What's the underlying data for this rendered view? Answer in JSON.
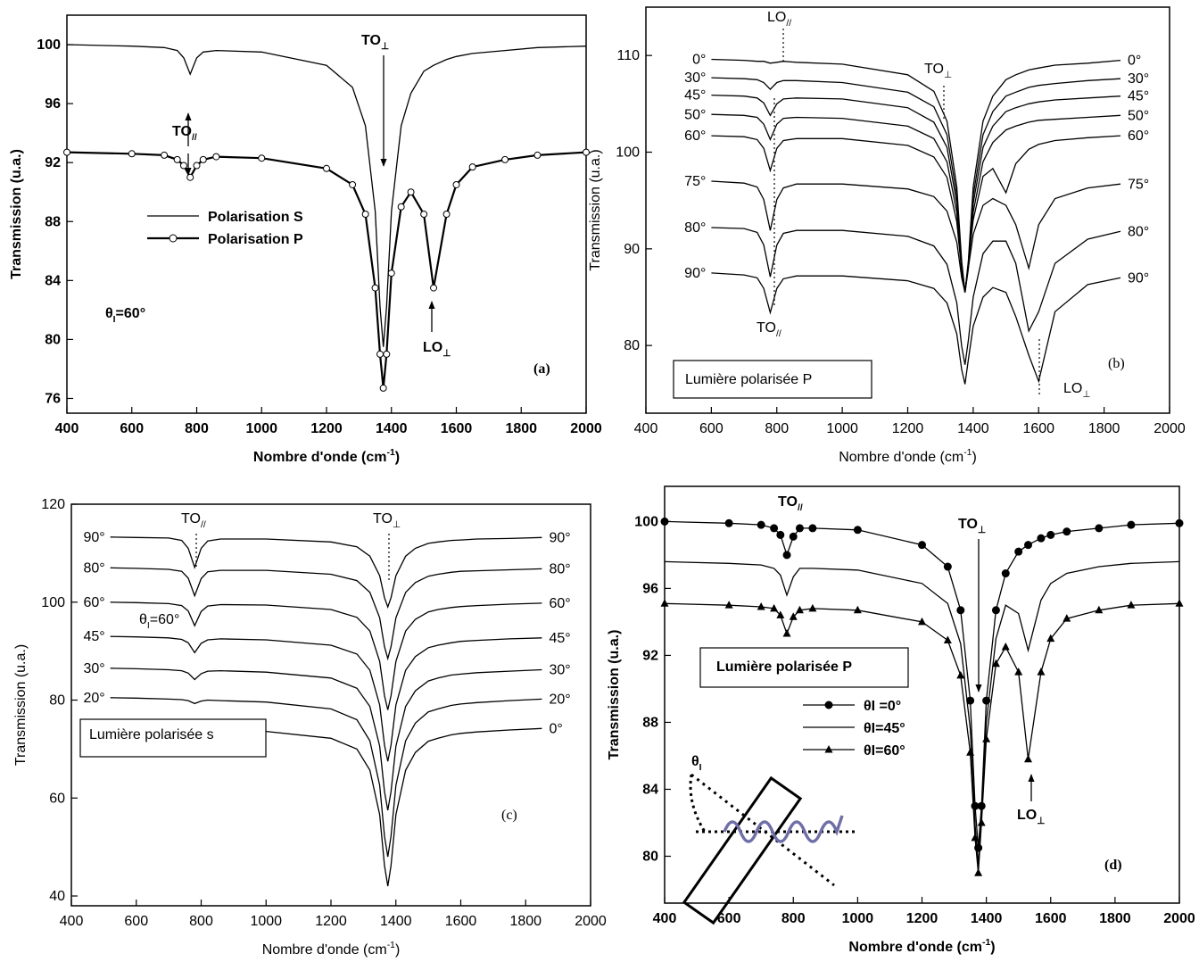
{
  "chart_data": [
    {
      "type": "line",
      "panel_label": "(a)",
      "x_label": {
        "text": "Nombre d'onde (cm",
        "sup": "-1",
        "tail": ")"
      },
      "y_label": "Transmission (u.a.)",
      "x": [
        400,
        600,
        700,
        740,
        760,
        780,
        800,
        820,
        860,
        1000,
        1200,
        1280,
        1320,
        1350,
        1365,
        1375,
        1385,
        1400,
        1430,
        1460,
        1500,
        1530,
        1570,
        1600,
        1650,
        1750,
        1850,
        2000
      ],
      "series": [
        {
          "name": "Polarisation S",
          "color": "#000000",
          "values": [
            100,
            99.9,
            99.8,
            99.6,
            99.1,
            98,
            99.1,
            99.5,
            99.6,
            99.5,
            98.6,
            97.1,
            94.5,
            88.7,
            82.2,
            79.5,
            82.2,
            88.7,
            94.5,
            96.7,
            98.2,
            98.6,
            99,
            99.2,
            99.4,
            99.6,
            99.8,
            99.9
          ]
        },
        {
          "name": "Polarisation P",
          "color": "#000000",
          "marker": "circle",
          "values": [
            92.7,
            92.6,
            92.5,
            92.2,
            91.8,
            91,
            91.8,
            92.2,
            92.4,
            92.3,
            91.6,
            90.5,
            88.5,
            83.5,
            79,
            76.7,
            79,
            84.5,
            89,
            90,
            88.5,
            83.5,
            88.5,
            90.5,
            91.7,
            92.2,
            92.5,
            92.7
          ]
        }
      ],
      "xlim": [
        400,
        2000
      ],
      "ylim": [
        75,
        102
      ],
      "xticks": [
        400,
        600,
        800,
        1000,
        1200,
        1400,
        1600,
        1800,
        2000
      ],
      "yticks": [
        76,
        80,
        84,
        88,
        92,
        96,
        100
      ],
      "annotations": [
        {
          "text": "TO",
          "sub": "⊥"
        },
        {
          "text": "TO",
          "sub": "//"
        },
        {
          "text": "LO",
          "sub": "⊥"
        },
        {
          "text": "θ",
          "sub": "I",
          "tail": "=60°"
        }
      ]
    },
    {
      "type": "line",
      "panel_label": "(b)",
      "x_label": {
        "text": "Nombre d'onde (cm",
        "sup": "-1",
        "tail": ")"
      },
      "y_label": "Transmission (u.a.)",
      "x": [
        600,
        700,
        740,
        760,
        780,
        800,
        820,
        860,
        1000,
        1200,
        1280,
        1320,
        1350,
        1365,
        1375,
        1385,
        1400,
        1430,
        1460,
        1500,
        1530,
        1570,
        1600,
        1650,
        1750,
        1850
      ],
      "series": [
        {
          "name": "0°",
          "color": "#000000",
          "values": [
            109.6,
            109.5,
            109.4,
            109.4,
            109.2,
            109.3,
            109.4,
            109.3,
            109.1,
            108,
            106.3,
            103.2,
            96.4,
            88.7,
            85.5,
            88.7,
            96.4,
            103.2,
            105.8,
            107.5,
            108,
            108.5,
            108.7,
            109,
            109.2,
            109.5
          ]
        },
        {
          "name": "30°",
          "color": "#000000",
          "values": [
            107.7,
            107.6,
            107.5,
            107.2,
            106.5,
            107.2,
            107.4,
            107.4,
            107.2,
            106.2,
            104.7,
            101.8,
            95.5,
            88.4,
            85.5,
            88.4,
            95.5,
            101.8,
            104.2,
            105.8,
            106.2,
            106.7,
            106.9,
            107.1,
            107.4,
            107.6
          ]
        },
        {
          "name": "45°",
          "color": "#000000",
          "values": [
            105.9,
            105.8,
            105.6,
            105.1,
            103.8,
            105,
            105.5,
            105.6,
            105.5,
            104.6,
            103.1,
            100.5,
            94.7,
            88.2,
            85.5,
            88.2,
            94.7,
            100.5,
            102.7,
            104.2,
            104.6,
            105,
            105.2,
            105.4,
            105.6,
            105.8
          ]
        },
        {
          "name": "50°",
          "color": "#000000",
          "values": [
            103.9,
            103.8,
            103.6,
            102.9,
            101.3,
            102.9,
            103.5,
            103.6,
            103.5,
            102.7,
            101.4,
            99,
            93.8,
            87.9,
            85.5,
            87.9,
            93.8,
            99,
            101,
            102.3,
            102.7,
            103.1,
            103.3,
            103.4,
            103.6,
            103.8
          ]
        },
        {
          "name": "60°",
          "color": "#000000",
          "values": [
            101.7,
            101.6,
            101.3,
            100.4,
            98.1,
            100.4,
            101.2,
            101.4,
            101.4,
            100.7,
            99.5,
            97.4,
            92.8,
            87.6,
            85.5,
            88.5,
            93,
            97.5,
            98.3,
            95.8,
            98.8,
            100.3,
            100.8,
            101.2,
            101.5,
            101.7
          ]
        },
        {
          "name": "75°",
          "color": "#000000",
          "values": [
            97,
            96.8,
            96.4,
            95.1,
            91.9,
            95.1,
            96.3,
            96.7,
            96.7,
            96.2,
            95.4,
            93.9,
            90.7,
            87,
            85.5,
            88,
            91.5,
            94.5,
            95.2,
            94.5,
            92.5,
            88,
            92.5,
            95.2,
            96.3,
            96.7
          ]
        },
        {
          "name": "80°",
          "color": "#000000",
          "values": [
            92.2,
            92.1,
            91.7,
            90.4,
            87.1,
            90.4,
            91.6,
            91.9,
            91.9,
            91.3,
            90.3,
            88.4,
            84.4,
            79.9,
            78,
            80.5,
            85,
            89.5,
            90.8,
            90.8,
            88.5,
            81.5,
            83.5,
            88.5,
            91,
            91.8
          ]
        },
        {
          "name": "90°",
          "color": "#000000",
          "values": [
            87.5,
            87.3,
            87,
            85.9,
            83.4,
            85.9,
            86.9,
            87.2,
            87.2,
            86.7,
            85.9,
            84.4,
            81.2,
            77.5,
            76,
            78.5,
            82,
            85,
            86,
            85.5,
            83,
            79,
            76.3,
            83.5,
            86.3,
            87
          ]
        }
      ],
      "xlim": [
        400,
        2000
      ],
      "ylim": [
        73,
        115
      ],
      "xticks": [
        400,
        600,
        800,
        1000,
        1200,
        1400,
        1600,
        1800,
        2000
      ],
      "yticks": [
        80,
        90,
        100,
        110
      ],
      "annotations": [
        {
          "text": "LO",
          "sub": "//"
        },
        {
          "text": "TO",
          "sub": "⊥"
        },
        {
          "text": "TO",
          "sub": "//"
        },
        {
          "text": "LO",
          "sub": "⊥"
        },
        {
          "text": "Lumière polarisée P"
        }
      ]
    },
    {
      "type": "line",
      "panel_label": "(c)",
      "x_label": {
        "text": "Nombre d'onde (cm",
        "sup": "-1",
        "tail": ")"
      },
      "y_label": "Transmission (u.a.)",
      "x": [
        520,
        600,
        700,
        740,
        760,
        780,
        800,
        820,
        860,
        1000,
        1200,
        1280,
        1320,
        1350,
        1365,
        1375,
        1385,
        1400,
        1430,
        1460,
        1500,
        1530,
        1570,
        1600,
        1650,
        1750,
        1850
      ],
      "series": [
        {
          "name": "90°",
          "color": "#000000",
          "values": [
            113.3,
            113.2,
            113.1,
            112.6,
            111,
            107.1,
            111,
            112.5,
            112.9,
            112.9,
            112.3,
            111.3,
            109.4,
            105.4,
            100.9,
            99,
            100.9,
            105.4,
            109.4,
            111,
            112,
            112.3,
            112.6,
            112.7,
            112.9,
            113,
            113.2
          ]
        },
        {
          "name": "80°",
          "color": "#000000",
          "values": [
            107,
            106.9,
            106.7,
            106.3,
            104.9,
            101.3,
            104.8,
            106.2,
            106.5,
            106.5,
            105.7,
            104.4,
            102,
            96.8,
            90.9,
            88.5,
            90.9,
            96.8,
            102,
            104,
            105.3,
            105.7,
            106.1,
            106.3,
            106.4,
            106.6,
            106.8
          ]
        },
        {
          "name": "60°",
          "color": "#000000",
          "values": [
            100,
            99.9,
            99.7,
            99.3,
            98.2,
            95.2,
            98.1,
            99.2,
            99.5,
            99.4,
            98.5,
            96.9,
            94.1,
            87.9,
            80.9,
            78,
            80.9,
            87.9,
            94.1,
            96.5,
            98,
            98.5,
            98.9,
            99.1,
            99.3,
            99.6,
            99.8
          ]
        },
        {
          "name": "45°",
          "color": "#000000",
          "values": [
            93,
            92.9,
            92.7,
            92.4,
            91.7,
            89.7,
            91.6,
            92.3,
            92.5,
            92.3,
            91.2,
            89.4,
            86.1,
            79,
            70.8,
            67.5,
            70.8,
            79,
            86.1,
            88.9,
            90.7,
            91.2,
            91.7,
            92,
            92.2,
            92.5,
            92.7
          ]
        },
        {
          "name": "30°",
          "color": "#000000",
          "values": [
            86.5,
            86.4,
            86.2,
            86,
            85.5,
            84.2,
            85.4,
            85.9,
            86,
            85.7,
            84.5,
            82.4,
            78.7,
            70.6,
            61.3,
            57.5,
            61.3,
            70.6,
            78.7,
            81.9,
            83.9,
            84.5,
            85.1,
            85.3,
            85.6,
            85.9,
            86.2
          ]
        },
        {
          "name": "20°",
          "color": "#000000",
          "values": [
            80.5,
            80.4,
            80.2,
            80.1,
            79.9,
            79.3,
            79.8,
            80,
            79.9,
            79.6,
            78.2,
            76,
            71.7,
            62.6,
            52.2,
            48,
            52.2,
            62.6,
            71.7,
            75.3,
            77.6,
            78.2,
            78.9,
            79.2,
            79.5,
            79.9,
            80.2
          ]
        },
        {
          "name": "0°",
          "color": "#000000",
          "values": [
            74.5,
            74.4,
            74.2,
            74.2,
            74.1,
            74.1,
            74.1,
            74,
            74,
            73.6,
            72.2,
            70,
            65.7,
            56.6,
            46.2,
            42,
            46.2,
            56.6,
            65.7,
            69.3,
            71.6,
            72.2,
            72.9,
            73.2,
            73.5,
            73.9,
            74.2
          ]
        }
      ],
      "xlim": [
        400,
        2000
      ],
      "ylim": [
        38,
        120
      ],
      "xticks": [
        400,
        600,
        800,
        1000,
        1200,
        1400,
        1600,
        1800,
        2000
      ],
      "yticks": [
        40,
        60,
        80,
        100,
        120
      ],
      "annotations": [
        {
          "text": "TO",
          "sub": "//"
        },
        {
          "text": "TO",
          "sub": "⊥"
        },
        {
          "text": "θ",
          "sub": "I",
          "tail": "=60°"
        },
        {
          "text": "Lumière polarisée s"
        }
      ]
    },
    {
      "type": "line",
      "panel_label": "(d)",
      "x_label": {
        "text": "Nombre d'onde (cm",
        "sup": "-1",
        "tail": ")"
      },
      "y_label": "Transmission (u.a.)",
      "x": [
        400,
        600,
        700,
        740,
        760,
        780,
        800,
        820,
        860,
        1000,
        1200,
        1280,
        1320,
        1350,
        1365,
        1375,
        1385,
        1400,
        1430,
        1460,
        1500,
        1530,
        1570,
        1600,
        1650,
        1750,
        1850,
        2000
      ],
      "series": [
        {
          "name": "θI =0°",
          "color": "#000000",
          "marker": "circle",
          "values": [
            100,
            99.9,
            99.8,
            99.6,
            99.2,
            98,
            99.1,
            99.6,
            99.6,
            99.5,
            98.6,
            97.3,
            94.7,
            89.3,
            83,
            80.5,
            83,
            89.3,
            94.7,
            96.9,
            98.2,
            98.6,
            99,
            99.2,
            99.4,
            99.6,
            99.8,
            99.9
          ]
        },
        {
          "name": "θI=45°",
          "color": "#000000",
          "values": [
            97.6,
            97.5,
            97.4,
            97.2,
            96.8,
            95.6,
            96.7,
            97.2,
            97.2,
            97.1,
            96.3,
            95.1,
            92.7,
            87.6,
            81.9,
            79.5,
            82.5,
            88,
            93,
            95,
            94.5,
            92.3,
            95.3,
            96.3,
            96.9,
            97.3,
            97.5,
            97.6
          ]
        },
        {
          "name": "θI=60°",
          "color": "#000000",
          "marker": "triangle",
          "values": [
            95.1,
            95,
            94.9,
            94.8,
            94.4,
            93.3,
            94.3,
            94.7,
            94.8,
            94.7,
            94,
            92.9,
            90.8,
            86.2,
            81.1,
            79,
            82,
            87,
            91.5,
            92.5,
            91,
            85.8,
            91,
            93,
            94.2,
            94.7,
            95,
            95.1
          ]
        }
      ],
      "xlim": [
        400,
        2000
      ],
      "ylim": [
        77.2,
        102.1
      ],
      "xticks": [
        400,
        600,
        800,
        1000,
        1200,
        1400,
        1600,
        1800,
        2000
      ],
      "yticks": [
        80,
        84,
        88,
        92,
        96,
        100
      ],
      "annotations": [
        {
          "text": "TO",
          "sub": "//"
        },
        {
          "text": "TO",
          "sub": "⊥"
        },
        {
          "text": "LO",
          "sub": "⊥"
        },
        {
          "text": "Lumière polarisée P"
        },
        {
          "text": "θ",
          "sub": "I"
        }
      ]
    }
  ]
}
